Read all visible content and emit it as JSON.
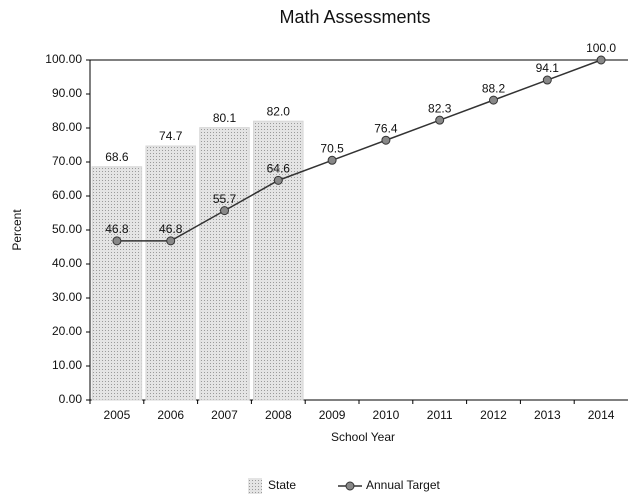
{
  "chart_data": {
    "type": "combo",
    "title": "Math Assessments",
    "x_label": "School Year",
    "y_label": "Percent",
    "categories": [
      "2005",
      "2006",
      "2007",
      "2008",
      "2009",
      "2010",
      "2011",
      "2012",
      "2013",
      "2014"
    ],
    "series": [
      {
        "name": "State",
        "type": "bar",
        "color": "#d6d6d6",
        "values": [
          68.6,
          74.7,
          80.1,
          82.0,
          null,
          null,
          null,
          null,
          null,
          null
        ],
        "value_labels": [
          "68.6",
          "74.7",
          "80.1",
          "82.0",
          null,
          null,
          null,
          null,
          null,
          null
        ]
      },
      {
        "name": "Annual Target",
        "type": "line",
        "color": "#333333",
        "values": [
          46.8,
          46.8,
          55.7,
          64.6,
          70.5,
          76.4,
          82.3,
          88.2,
          94.1,
          100.0
        ],
        "value_labels": [
          "46.8",
          "46.8",
          "55.7",
          "64.6",
          "70.5",
          "76.4",
          "82.3",
          "88.2",
          "94.1",
          "100.0"
        ]
      }
    ],
    "ylim": [
      0,
      100
    ],
    "yticks": [
      {
        "value": 0,
        "label": "0.00"
      },
      {
        "value": 10,
        "label": "10.00"
      },
      {
        "value": 20,
        "label": "20.00"
      },
      {
        "value": 30,
        "label": "30.00"
      },
      {
        "value": 40,
        "label": "40.00"
      },
      {
        "value": 50,
        "label": "50.00"
      },
      {
        "value": 60,
        "label": "60.00"
      },
      {
        "value": 70,
        "label": "70.00"
      },
      {
        "value": 80,
        "label": "80.00"
      },
      {
        "value": 90,
        "label": "90.00"
      },
      {
        "value": 100,
        "label": "100.00"
      }
    ],
    "grid": false,
    "legend": "bottom"
  }
}
